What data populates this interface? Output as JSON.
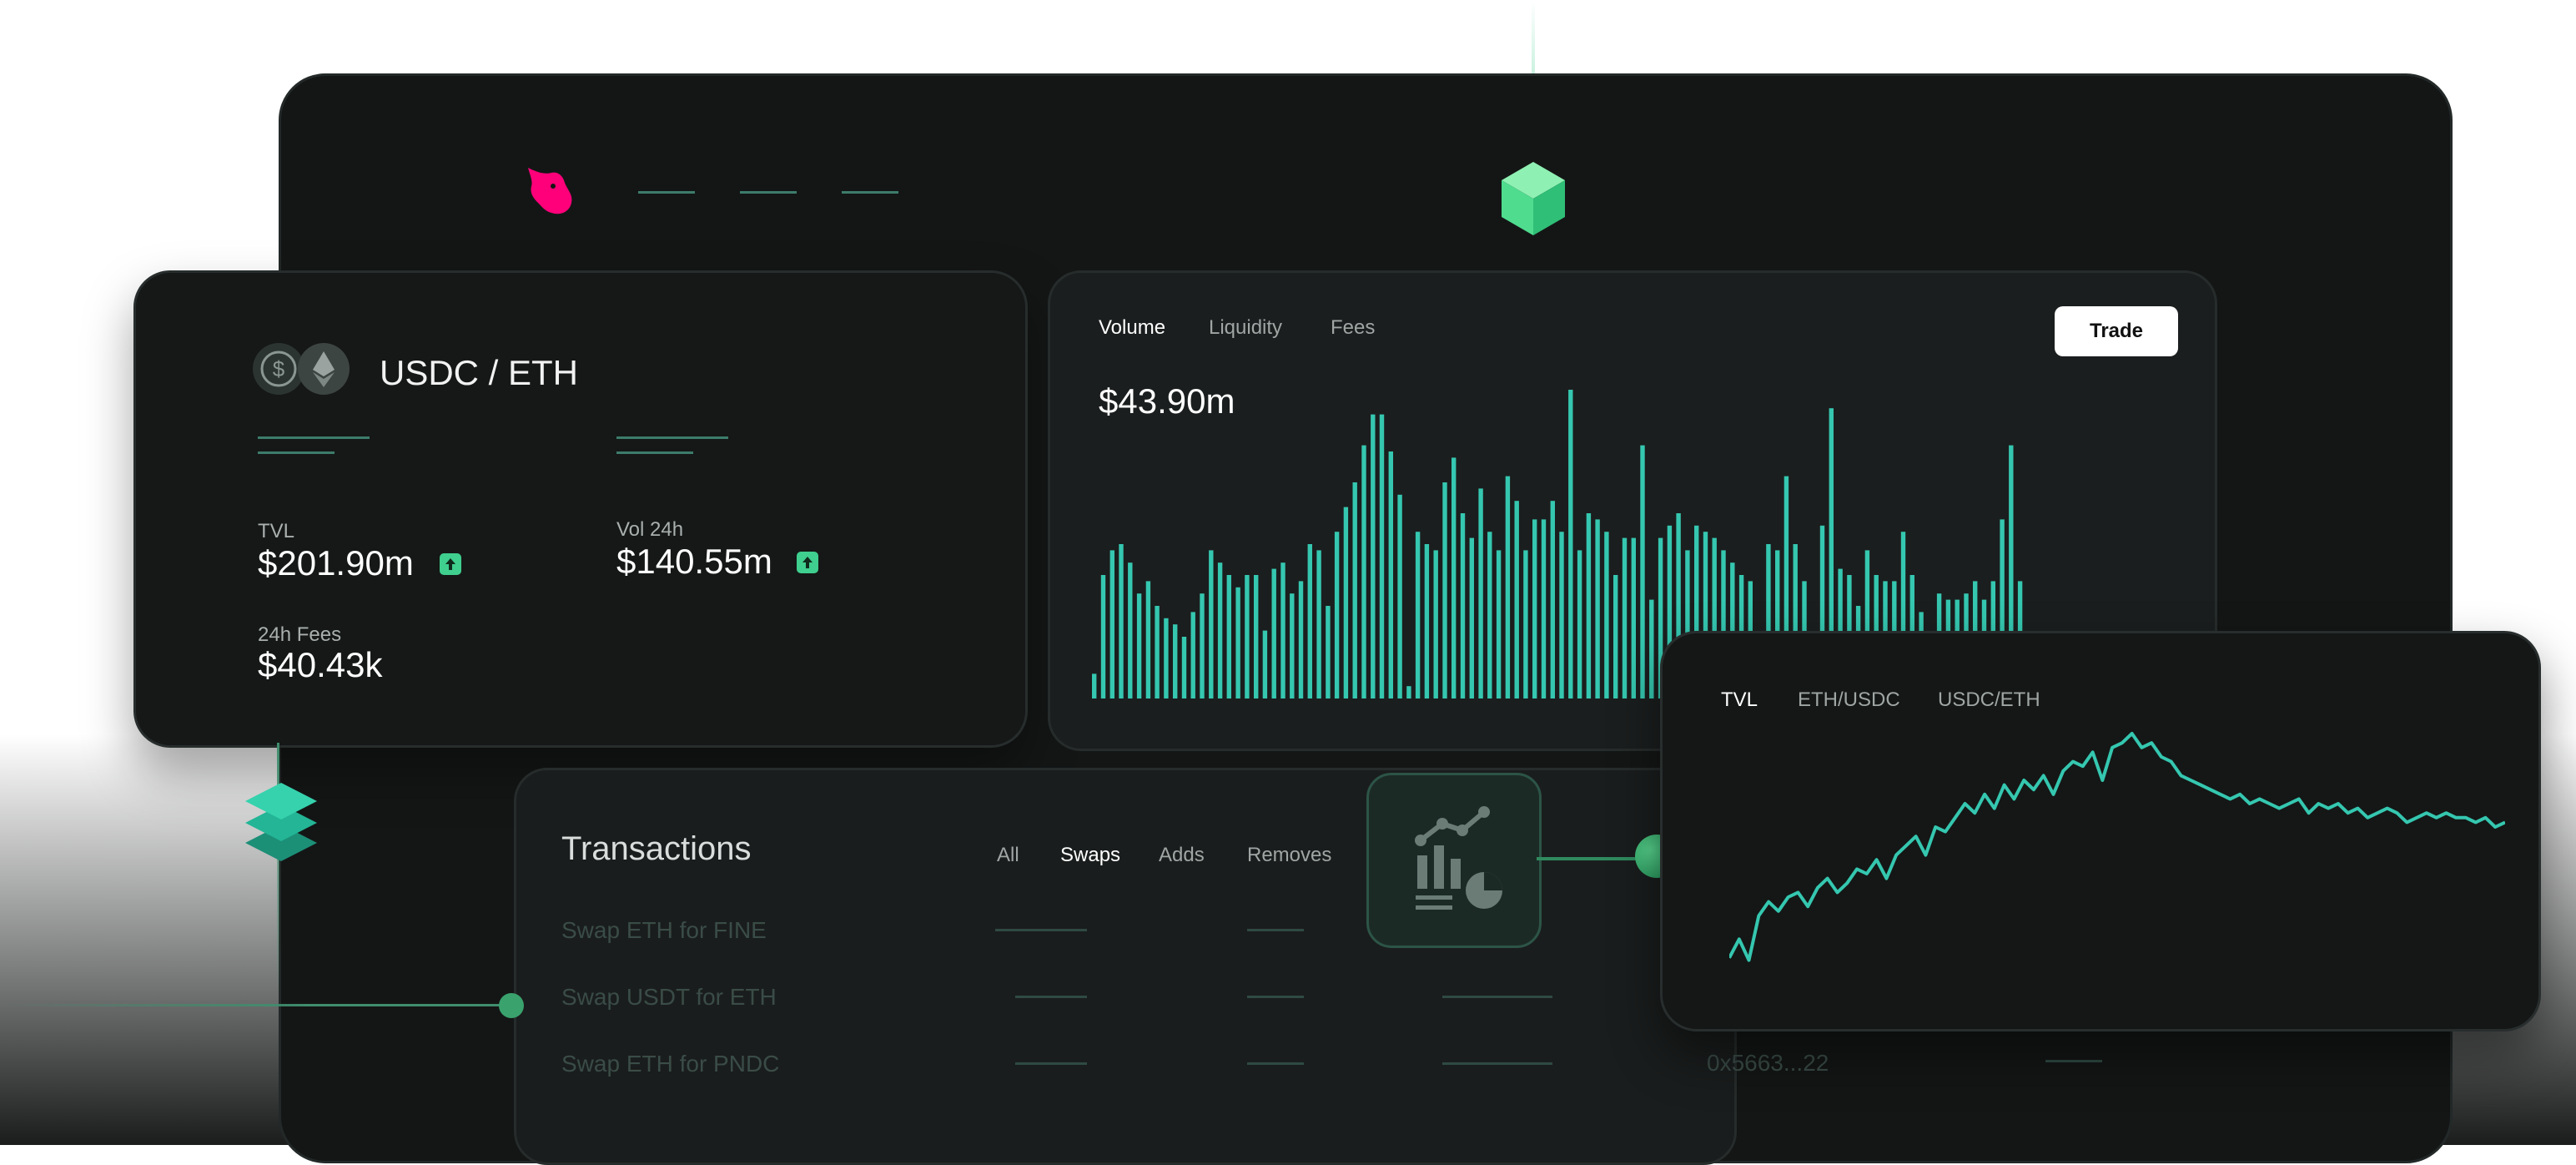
{
  "pair": {
    "title": "USDC / ETH",
    "tvl_label": "TVL",
    "tvl_value": "$201.90m",
    "vol_label": "Vol 24h",
    "vol_value": "$140.55m",
    "fees_label": "24h Fees",
    "fees_value": "$40.43k"
  },
  "volume_panel": {
    "tabs": [
      "Volume",
      "Liquidity",
      "Fees"
    ],
    "trade_label": "Trade",
    "value": "$43.90m"
  },
  "transactions": {
    "title": "Transactions",
    "filters": [
      "All",
      "Swaps",
      "Adds",
      "Removes"
    ],
    "rows": [
      "Swap ETH for FINE",
      "Swap USDT for ETH",
      "Swap ETH for PNDC"
    ],
    "hash": "0x5663...22"
  },
  "tvl_panel": {
    "tabs": [
      "TVL",
      "ETH/USDC",
      "USDC/ETH"
    ]
  },
  "colors": {
    "accent": "#3fcf8e",
    "bar": "#35c7b0",
    "logo": "#ff007a"
  },
  "chart_data": [
    {
      "type": "bar",
      "title": "",
      "values": [
        8,
        40,
        48,
        50,
        44,
        34,
        38,
        30,
        26,
        24,
        20,
        28,
        34,
        48,
        44,
        40,
        36,
        40,
        40,
        22,
        42,
        44,
        34,
        38,
        50,
        48,
        30,
        54,
        62,
        70,
        82,
        92,
        92,
        80,
        66,
        4,
        54,
        50,
        48,
        70,
        78,
        60,
        52,
        68,
        54,
        48,
        72,
        64,
        48,
        58,
        58,
        64,
        54,
        100,
        48,
        60,
        58,
        54,
        40,
        52,
        52,
        82,
        32,
        52,
        56,
        60,
        48,
        56,
        54,
        52,
        48,
        44,
        40,
        38,
        20,
        50,
        48,
        72,
        50,
        38,
        20,
        56,
        94,
        42,
        40,
        30,
        48,
        40,
        38,
        38,
        54,
        40,
        28,
        18,
        34,
        32,
        32,
        34,
        38,
        32,
        38,
        58,
        82,
        38,
        16,
        14,
        12,
        10,
        8,
        8,
        8,
        8,
        8,
        8,
        10,
        12
      ],
      "ylim": [
        0,
        100
      ]
    },
    {
      "type": "line",
      "title": "",
      "series": [
        {
          "values": [
            4,
            12,
            3,
            22,
            28,
            24,
            30,
            32,
            26,
            34,
            38,
            32,
            36,
            42,
            40,
            46,
            38,
            48,
            52,
            56,
            48,
            60,
            58,
            64,
            70,
            66,
            74,
            68,
            78,
            72,
            80,
            76,
            82,
            74,
            84,
            88,
            86,
            92,
            80,
            94,
            96,
            100,
            94,
            96,
            90,
            88,
            82,
            80,
            78,
            76,
            74,
            72,
            74,
            70,
            72,
            70,
            68,
            70,
            72,
            66,
            70,
            68,
            70,
            66,
            68,
            64,
            66,
            68,
            66,
            62,
            64,
            66,
            64,
            66,
            64,
            64,
            62,
            64,
            60,
            62
          ]
        }
      ],
      "ylim": [
        0,
        100
      ]
    }
  ]
}
